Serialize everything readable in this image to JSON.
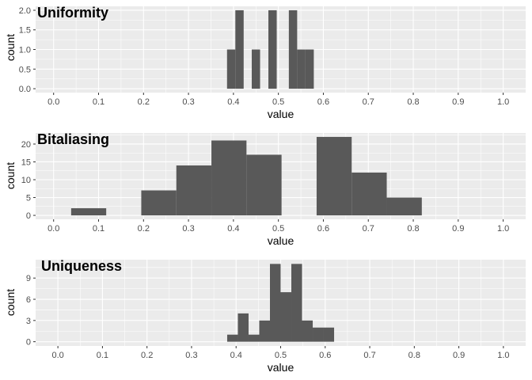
{
  "chart_data": [
    {
      "type": "bar",
      "title": "Uniformity",
      "xlabel": "value",
      "ylabel": "count",
      "xlim": [
        -0.04,
        1.05
      ],
      "ylim": [
        -0.1,
        2.1
      ],
      "x_ticks": [
        "0.0",
        "0.1",
        "0.2",
        "0.3",
        "0.4",
        "0.5",
        "0.6",
        "0.7",
        "0.8",
        "0.9",
        "1.0"
      ],
      "y_ticks": [
        "0.0",
        "0.5",
        "1.0",
        "1.5",
        "2.0"
      ],
      "y_tick_values": [
        0,
        0.5,
        1.0,
        1.5,
        2.0
      ],
      "bin_width": 0.0185,
      "bins": [
        {
          "x": 0.395,
          "count": 1
        },
        {
          "x": 0.4135,
          "count": 2
        },
        {
          "x": 0.45,
          "count": 1
        },
        {
          "x": 0.487,
          "count": 2
        },
        {
          "x": 0.5325,
          "count": 2
        },
        {
          "x": 0.551,
          "count": 1
        },
        {
          "x": 0.5695,
          "count": 1
        }
      ]
    },
    {
      "type": "bar",
      "title": "Bitaliasing",
      "xlabel": "value",
      "ylabel": "count",
      "xlim": [
        -0.04,
        1.05
      ],
      "ylim": [
        -1.1,
        23.1
      ],
      "x_ticks": [
        "0.0",
        "0.1",
        "0.2",
        "0.3",
        "0.4",
        "0.5",
        "0.6",
        "0.7",
        "0.8",
        "0.9",
        "1.0"
      ],
      "y_ticks": [
        "0",
        "5",
        "10",
        "15",
        "20"
      ],
      "y_tick_values": [
        0,
        5,
        10,
        15,
        20
      ],
      "bin_width": 0.078,
      "bins": [
        {
          "x": 0.078,
          "count": 2
        },
        {
          "x": 0.234,
          "count": 7
        },
        {
          "x": 0.312,
          "count": 14
        },
        {
          "x": 0.39,
          "count": 21
        },
        {
          "x": 0.468,
          "count": 17
        },
        {
          "x": 0.624,
          "count": 22
        },
        {
          "x": 0.702,
          "count": 12
        },
        {
          "x": 0.78,
          "count": 5
        }
      ]
    },
    {
      "type": "bar",
      "title": "Uniqueness",
      "xlabel": "value",
      "ylabel": "count",
      "xlim": [
        -0.05,
        1.05
      ],
      "ylim": [
        -0.6,
        11.6
      ],
      "x_ticks": [
        "0.0",
        "0.1",
        "0.2",
        "0.3",
        "0.4",
        "0.5",
        "0.6",
        "0.7",
        "0.8",
        "0.9",
        "1.0"
      ],
      "y_ticks": [
        "0",
        "3",
        "6",
        "9"
      ],
      "y_tick_values": [
        0,
        3,
        6,
        9
      ],
      "bin_width": 0.024,
      "bins": [
        {
          "x": 0.392,
          "count": 1
        },
        {
          "x": 0.416,
          "count": 4
        },
        {
          "x": 0.44,
          "count": 1
        },
        {
          "x": 0.464,
          "count": 3
        },
        {
          "x": 0.488,
          "count": 11
        },
        {
          "x": 0.512,
          "count": 7
        },
        {
          "x": 0.536,
          "count": 11
        },
        {
          "x": 0.56,
          "count": 3
        },
        {
          "x": 0.584,
          "count": 2
        },
        {
          "x": 0.608,
          "count": 2
        }
      ]
    }
  ]
}
